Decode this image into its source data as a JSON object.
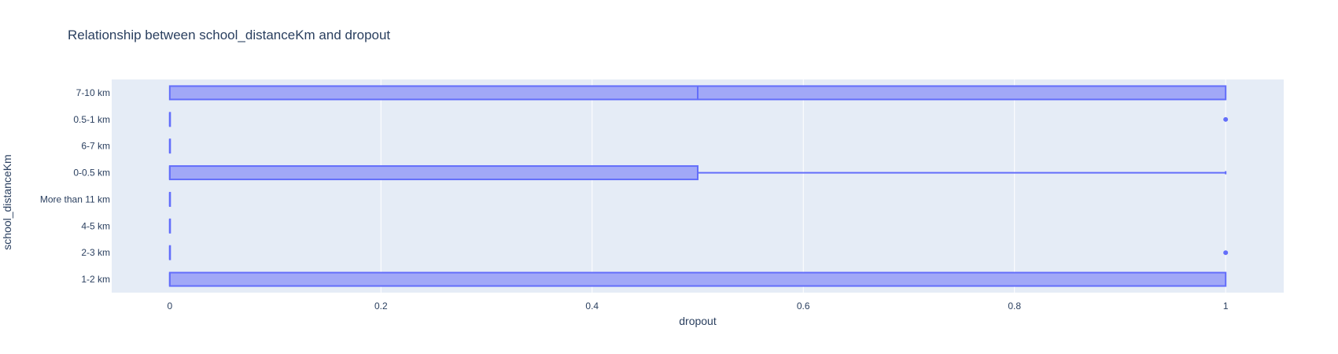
{
  "chart_data": {
    "type": "box",
    "orientation": "horizontal",
    "title": "Relationship between school_distanceKm and dropout",
    "xlabel": "dropout",
    "ylabel": "school_distanceKm",
    "xlim": [
      -0.055,
      1.055
    ],
    "xticks": [
      0,
      0.2,
      0.4,
      0.6,
      0.8,
      1
    ],
    "xtick_labels": [
      "0",
      "0.2",
      "0.4",
      "0.6",
      "0.8",
      "1"
    ],
    "grid": true,
    "categories": [
      "1-2 km",
      "2-3 km",
      "4-5 km",
      "More than 11 km",
      "0-0.5 km",
      "6-7 km",
      "0.5-1 km",
      "7-10 km"
    ],
    "boxes": [
      {
        "category": "1-2 km",
        "min": 0,
        "q1": 0,
        "median": 0,
        "q3": 1,
        "max": 1,
        "outliers": []
      },
      {
        "category": "2-3 km",
        "min": 0,
        "q1": 0,
        "median": 0,
        "q3": 0,
        "max": 0,
        "outliers": [
          1
        ]
      },
      {
        "category": "4-5 km",
        "min": 0,
        "q1": 0,
        "median": 0,
        "q3": 0,
        "max": 0,
        "outliers": []
      },
      {
        "category": "More than 11 km",
        "min": 0,
        "q1": 0,
        "median": 0,
        "q3": 0,
        "max": 0,
        "outliers": []
      },
      {
        "category": "0-0.5 km",
        "min": 0,
        "q1": 0,
        "median": 0,
        "q3": 0.5,
        "max": 1,
        "outliers": []
      },
      {
        "category": "6-7 km",
        "min": 0,
        "q1": 0,
        "median": 0,
        "q3": 0,
        "max": 0,
        "outliers": []
      },
      {
        "category": "0.5-1 km",
        "min": 0,
        "q1": 0,
        "median": 0,
        "q3": 0,
        "max": 0,
        "outliers": [
          1
        ]
      },
      {
        "category": "7-10 km",
        "min": 0,
        "q1": 0,
        "median": 0.5,
        "q3": 1,
        "max": 1,
        "outliers": []
      }
    ],
    "colors": {
      "box_fill": "#a1a8f7",
      "box_line": "#636efa",
      "plot_bg": "#e5ecf6",
      "grid": "#ffffff",
      "text": "#2a3f5f"
    }
  }
}
